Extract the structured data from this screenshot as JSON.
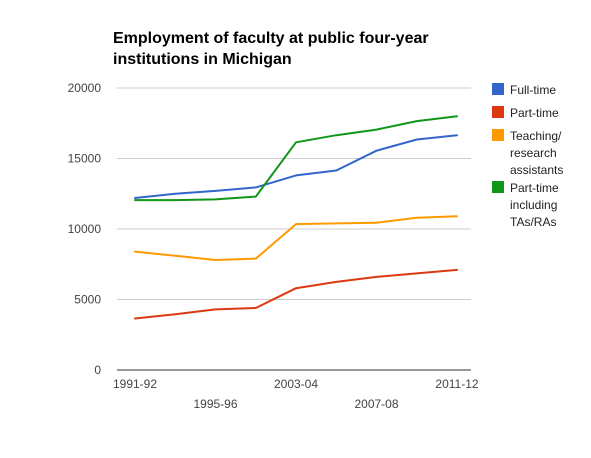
{
  "chart_data": {
    "type": "line",
    "title_lines": [
      "Employment of faculty at public four-year",
      "institutions in Michigan"
    ],
    "x_tick_labels": [
      "1991-92",
      "1995-96",
      "2003-04",
      "2007-08",
      "2011-12"
    ],
    "y_ticks": [
      0,
      5000,
      10000,
      15000,
      20000
    ],
    "y_tick_labels": [
      "0",
      "5000",
      "10000",
      "15000",
      "20000"
    ],
    "ylim": [
      0,
      20000
    ],
    "grid": "horizontal",
    "legend_position": "right",
    "series": [
      {
        "name": "Full-time",
        "color": "#3366cc",
        "values": [
          12200,
          12500,
          12700,
          12950,
          13800,
          14150,
          15550,
          16350,
          16650
        ]
      },
      {
        "name": "Part-time",
        "color": "#dc3912",
        "values": [
          3650,
          3950,
          4300,
          4400,
          5800,
          6250,
          6600,
          6850,
          7100
        ]
      },
      {
        "name": "Teaching/ research assistants",
        "color": "#ff9900",
        "values": [
          8400,
          8100,
          7800,
          7900,
          10350,
          10400,
          10450,
          10800,
          10900
        ]
      },
      {
        "name": "Part-time including TAs/RAs",
        "color": "#109618",
        "values": [
          12050,
          12050,
          12100,
          12300,
          16150,
          16650,
          17050,
          17650,
          18000
        ]
      }
    ],
    "legend_lines": [
      [
        "Full-time"
      ],
      [
        "Part-time"
      ],
      [
        "Teaching/",
        "research",
        "assistants"
      ],
      [
        "Part-time",
        "including",
        "TAs/RAs"
      ]
    ]
  }
}
